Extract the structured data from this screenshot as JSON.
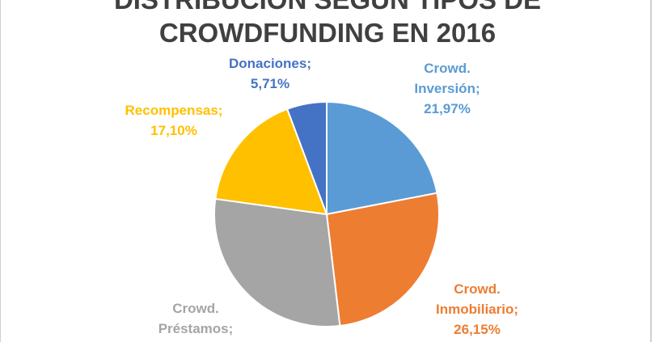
{
  "chart_data": {
    "type": "pie",
    "title_lines": [
      "DISTRIBUCIÓN SEGÚN TIPOS DE",
      "CROWDFUNDING EN 2016"
    ],
    "slices": [
      {
        "name": "Crowd. Inversión",
        "label_lines": [
          "Crowd.",
          "Inversión;",
          "21,97%"
        ],
        "value": 21.97,
        "color": "#5B9BD5"
      },
      {
        "name": "Crowd. Inmobiliario",
        "label_lines": [
          "Crowd.",
          "Inmobiliario;",
          "26,15%"
        ],
        "value": 26.15,
        "color": "#ED7D31"
      },
      {
        "name": "Crowd. Préstamos",
        "label_lines": [
          "Crowd.",
          "Préstamos;",
          ""
        ],
        "value": 29.07,
        "color": "#A5A5A5"
      },
      {
        "name": "Recompensas",
        "label_lines": [
          "Recompensas;",
          "17,10%"
        ],
        "value": 17.1,
        "color": "#FFC000"
      },
      {
        "name": "Donaciones",
        "label_lines": [
          "Donaciones;",
          "5,71%"
        ],
        "value": 5.71,
        "color": "#4472C4"
      }
    ],
    "legend": "none",
    "data_labels": "outside"
  }
}
